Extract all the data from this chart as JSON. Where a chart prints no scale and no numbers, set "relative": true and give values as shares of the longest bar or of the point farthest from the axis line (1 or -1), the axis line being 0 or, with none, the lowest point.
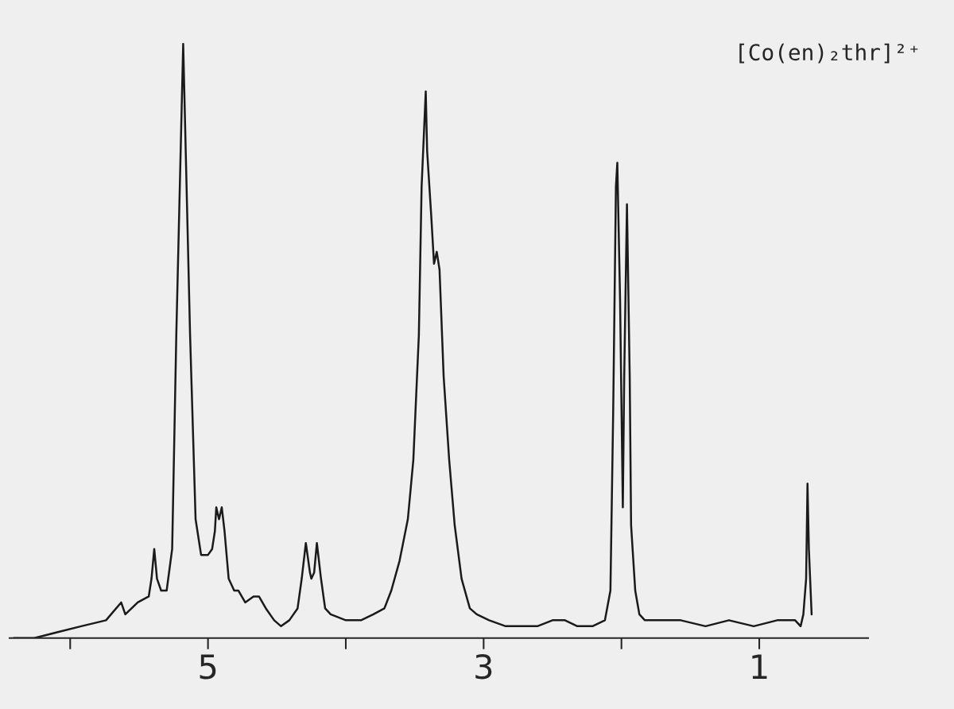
{
  "chart_data": {
    "type": "line",
    "relative": true,
    "annotations": [
      "[Co(en)₂thr]²⁺"
    ],
    "xlim": [
      6.44,
      0.21
    ],
    "xticks": [
      {
        "value": 6,
        "label": null
      },
      5,
      {
        "value": 4,
        "label": null
      },
      3,
      {
        "value": 2,
        "label": null
      },
      1
    ],
    "grid": false,
    "legend": false,
    "marker": "none",
    "line_style": "solid",
    "series": [
      {
        "color": "#1a1a1a",
        "x": [
          6.41,
          6.26,
          6.09,
          5.92,
          5.74,
          5.63,
          5.6,
          5.51,
          5.43,
          5.41,
          5.39,
          5.37,
          5.34,
          5.3,
          5.26,
          5.23,
          5.18,
          5.13,
          5.09,
          5.05,
          5.0,
          4.97,
          4.95,
          4.94,
          4.92,
          4.9,
          4.88,
          4.85,
          4.81,
          4.78,
          4.73,
          4.67,
          4.63,
          4.58,
          4.52,
          4.47,
          4.41,
          4.35,
          4.32,
          4.29,
          4.26,
          4.25,
          4.23,
          4.21,
          4.18,
          4.15,
          4.11,
          4.0,
          3.89,
          3.8,
          3.72,
          3.67,
          3.61,
          3.55,
          3.51,
          3.47,
          3.45,
          3.42,
          3.41,
          3.38,
          3.36,
          3.34,
          3.32,
          3.29,
          3.25,
          3.21,
          3.16,
          3.1,
          3.05,
          2.96,
          2.84,
          2.73,
          2.61,
          2.5,
          2.41,
          2.32,
          2.21,
          2.12,
          2.08,
          2.06,
          2.04,
          2.03,
          2.01,
          1.99,
          1.98,
          1.96,
          1.94,
          1.93,
          1.9,
          1.87,
          1.83,
          1.74,
          1.57,
          1.39,
          1.22,
          1.04,
          0.87,
          0.74,
          0.7,
          0.68,
          0.66,
          0.65,
          0.64,
          0.62
        ],
        "values": [
          0,
          0.0,
          0.01,
          0.02,
          0.03,
          0.06,
          0.04,
          0.06,
          0.07,
          0.1,
          0.15,
          0.1,
          0.08,
          0.08,
          0.15,
          0.51,
          1,
          0.51,
          0.2,
          0.14,
          0.14,
          0.15,
          0.18,
          0.22,
          0.2,
          0.22,
          0.18,
          0.1,
          0.08,
          0.08,
          0.06,
          0.07,
          0.07,
          0.05,
          0.03,
          0.02,
          0.03,
          0.05,
          0.1,
          0.16,
          0.11,
          0.1,
          0.11,
          0.16,
          0.1,
          0.05,
          0.04,
          0.03,
          0.03,
          0.04,
          0.05,
          0.08,
          0.13,
          0.2,
          0.3,
          0.51,
          0.76,
          0.92,
          0.82,
          0.71,
          0.63,
          0.65,
          0.62,
          0.44,
          0.3,
          0.19,
          0.1,
          0.05,
          0.04,
          0.03,
          0.02,
          0.02,
          0.02,
          0.03,
          0.03,
          0.02,
          0.02,
          0.03,
          0.08,
          0.38,
          0.76,
          0.8,
          0.57,
          0.22,
          0.44,
          0.73,
          0.44,
          0.19,
          0.08,
          0.04,
          0.03,
          0.03,
          0.03,
          0.02,
          0.03,
          0.02,
          0.03,
          0.03,
          0.02,
          0.04,
          0.1,
          0.26,
          0.15,
          0.04
        ]
      }
    ]
  }
}
